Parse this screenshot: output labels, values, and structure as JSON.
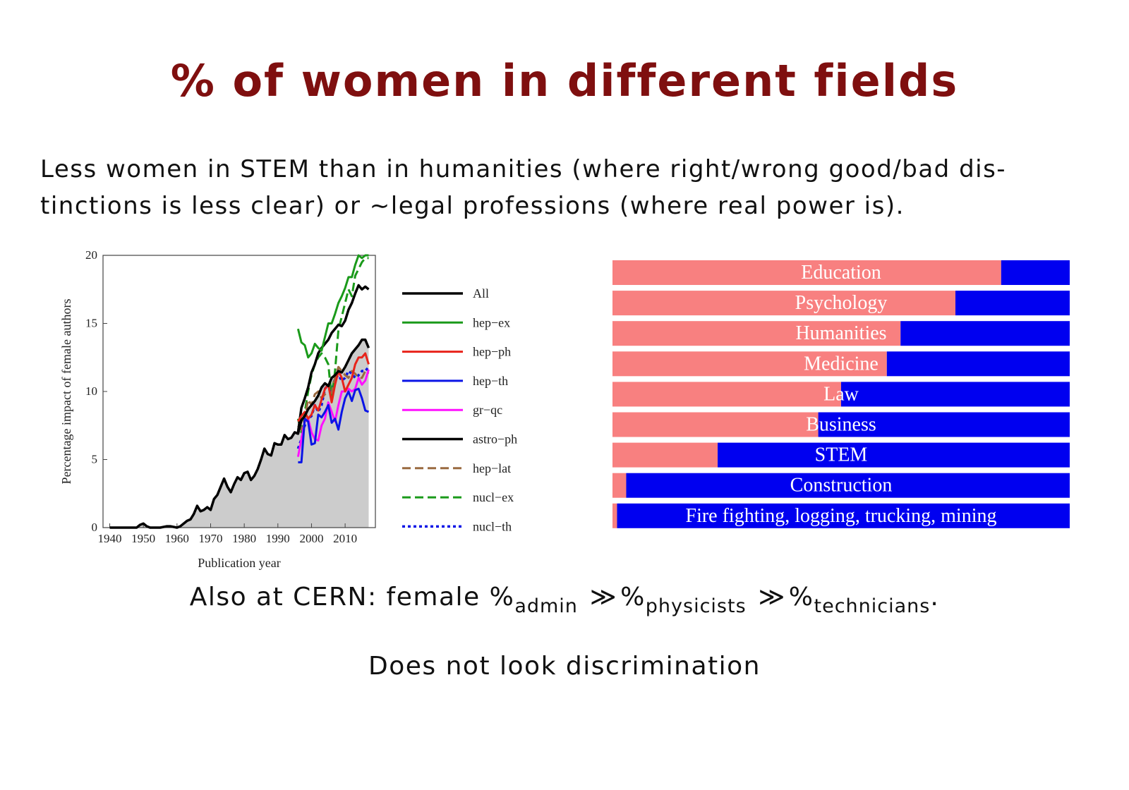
{
  "slide": {
    "title": "% of women in different fields",
    "intro_line1": "Less women in STEM than in humanities (where right/wrong good/bad dis-",
    "intro_line2": "tinctions is less clear) or ∼legal professions (where real power is).",
    "cern_prefix": "Also at CERN: female %",
    "cern_sub1": "admin",
    "cern_sep": "≫",
    "cern_pct": "%",
    "cern_sub2": "physicists",
    "cern_sub3": "technicians",
    "cern_suffix": ".",
    "conclusion": "Does not look discrimination"
  },
  "chart_data": [
    {
      "type": "line",
      "xlabel": "Publication year",
      "ylabel": "Percentage impact of female authors",
      "xlim": [
        1938,
        2019
      ],
      "ylim": [
        0,
        20
      ],
      "xticks": [
        1940,
        1950,
        1960,
        1970,
        1980,
        1990,
        2000,
        2010
      ],
      "yticks": [
        0,
        5,
        10,
        15,
        20
      ],
      "grid": false,
      "legend": "right",
      "series": [
        {
          "name": "All",
          "color": "#000000",
          "dash": "solid",
          "width": 3.5,
          "fill": true,
          "x": [
            1940,
            1945,
            1948,
            1949,
            1950,
            1951,
            1952,
            1955,
            1957,
            1958,
            1960,
            1961,
            1962,
            1963,
            1964,
            1965,
            1966,
            1967,
            1968,
            1969,
            1970,
            1971,
            1972,
            1973,
            1974,
            1975,
            1976,
            1977,
            1978,
            1979,
            1980,
            1981,
            1982,
            1983,
            1984,
            1985,
            1986,
            1987,
            1988,
            1989,
            1990,
            1991,
            1992,
            1993,
            1994,
            1995,
            1996,
            1997,
            1998,
            1999,
            2000,
            2001,
            2002,
            2003,
            2004,
            2005,
            2006,
            2007,
            2008,
            2009,
            2010,
            2011,
            2012,
            2013,
            2014,
            2015,
            2016,
            2017
          ],
          "y": [
            0,
            0,
            0,
            0.2,
            0.3,
            0.1,
            0,
            0,
            0.1,
            0.1,
            0,
            0.1,
            0.3,
            0.5,
            0.6,
            1.0,
            1.6,
            1.2,
            1.3,
            1.5,
            1.3,
            2.1,
            2.4,
            3.0,
            3.6,
            3.0,
            2.6,
            3.2,
            3.7,
            3.5,
            4.0,
            4.1,
            3.5,
            3.8,
            4.3,
            5.0,
            5.8,
            5.4,
            5.3,
            6.2,
            6.1,
            6.1,
            6.8,
            6.5,
            6.6,
            7.0,
            6.9,
            7.9,
            8.2,
            8.7,
            9.0,
            9.3,
            9.7,
            10.3,
            10.6,
            10.4,
            11.0,
            11.2,
            11.5,
            11.4,
            11.8,
            12.3,
            12.8,
            13.1,
            13.4,
            13.8,
            13.8,
            13.2
          ]
        },
        {
          "name": "hep−ex",
          "color": "#1a9a1a",
          "dash": "solid",
          "width": 3,
          "x": [
            1996,
            1997,
            1998,
            1999,
            2000,
            2001,
            2002,
            2003,
            2004,
            2005,
            2006,
            2007,
            2008,
            2009,
            2010,
            2011,
            2012,
            2013,
            2014,
            2015,
            2016,
            2017
          ],
          "y": [
            14.6,
            13.6,
            13.4,
            12.5,
            12.8,
            13.5,
            13.2,
            13.0,
            14.0,
            15.0,
            15.0,
            15.7,
            16.5,
            17.0,
            17.6,
            18.4,
            18.4,
            19.3,
            20.0,
            19.8,
            20.0,
            20.0
          ]
        },
        {
          "name": "hep−ph",
          "color": "#e8231a",
          "dash": "solid",
          "width": 3,
          "x": [
            1996,
            1997,
            1998,
            1999,
            2000,
            2001,
            2002,
            2003,
            2004,
            2005,
            2006,
            2007,
            2008,
            2009,
            2010,
            2011,
            2012,
            2013,
            2014,
            2015,
            2016,
            2017
          ],
          "y": [
            7.8,
            8.2,
            8.5,
            8.0,
            8.3,
            9.0,
            8.6,
            9.4,
            10.2,
            10.5,
            9.2,
            10.5,
            11.5,
            11.0,
            10.0,
            10.5,
            11.0,
            12.0,
            12.5,
            12.5,
            12.8,
            12.0
          ]
        },
        {
          "name": "hep−th",
          "color": "#0a14e6",
          "dash": "solid",
          "width": 3,
          "x": [
            1996,
            1997,
            1998,
            1999,
            2000,
            2001,
            2002,
            2003,
            2004,
            2005,
            2006,
            2007,
            2008,
            2009,
            2010,
            2011,
            2012,
            2013,
            2014,
            2015,
            2016,
            2017
          ],
          "y": [
            4.8,
            4.8,
            8.0,
            7.8,
            6.1,
            6.2,
            8.3,
            8.1,
            8.5,
            9.0,
            7.7,
            8.0,
            7.2,
            8.5,
            9.5,
            10.0,
            9.3,
            10.1,
            10.2,
            9.5,
            8.6,
            8.5
          ]
        },
        {
          "name": "gr−qc",
          "color": "#ff10ff",
          "dash": "solid",
          "width": 3,
          "x": [
            1996,
            1997,
            1998,
            1999,
            2000,
            2001,
            2002,
            2003,
            2004,
            2005,
            2006,
            2007,
            2008,
            2009,
            2010,
            2011,
            2012,
            2013,
            2014,
            2015,
            2016,
            2017
          ],
          "y": [
            5.2,
            6.5,
            7.8,
            8.0,
            7.0,
            6.5,
            6.4,
            7.5,
            8.0,
            9.2,
            8.5,
            7.8,
            9.0,
            10.0,
            10.0,
            10.2,
            10.0,
            10.2,
            11.0,
            10.5,
            10.8,
            11.6
          ]
        },
        {
          "name": "astro−ph",
          "color": "#000000",
          "dash": "solid",
          "width": 3.5,
          "x": [
            1996,
            1997,
            1998,
            1999,
            2000,
            2001,
            2002,
            2003,
            2004,
            2005,
            2006,
            2007,
            2008,
            2009,
            2010,
            2011,
            2012,
            2013,
            2014,
            2015,
            2016,
            2017
          ],
          "y": [
            7.0,
            8.8,
            9.5,
            10.3,
            11.4,
            12.0,
            12.8,
            13.2,
            13.5,
            13.8,
            14.3,
            14.6,
            14.9,
            14.8,
            15.2,
            16.0,
            16.5,
            17.2,
            17.8,
            17.5,
            17.7,
            17.5
          ]
        },
        {
          "name": "hep−lat",
          "color": "#9a6a40",
          "dash": "dashed",
          "width": 3,
          "x": [
            1996,
            1997,
            1998,
            1999,
            2000,
            2001,
            2002,
            2003,
            2004,
            2005,
            2006,
            2007,
            2008,
            2009,
            2010,
            2011,
            2012,
            2013,
            2014,
            2015,
            2016,
            2017
          ],
          "y": [
            7.5,
            7.2,
            8.0,
            9.4,
            9.0,
            9.8,
            10.0,
            9.5,
            9.8,
            10.0,
            9.9,
            11.0,
            11.8,
            11.5,
            11.2,
            11.0,
            11.5,
            11.3,
            11.0,
            11.0,
            11.5,
            11.3
          ]
        },
        {
          "name": "nucl−ex",
          "color": "#1a9a1a",
          "dash": "dashed",
          "width": 3,
          "x": [
            1996,
            1997,
            1998,
            1999,
            2000,
            2001,
            2002,
            2003,
            2004,
            2005,
            2006,
            2007,
            2008,
            2009,
            2010,
            2011,
            2012,
            2013,
            2014,
            2015,
            2016,
            2017
          ],
          "y": [
            8.0,
            7.0,
            8.5,
            10.0,
            11.2,
            12.0,
            12.5,
            12.8,
            12.5,
            12.0,
            9.5,
            11.5,
            14.5,
            15.5,
            16.5,
            17.5,
            17.0,
            18.5,
            19.0,
            19.5,
            19.8,
            19.8
          ]
        },
        {
          "name": "nucl−th",
          "color": "#0a14e6",
          "dash": "dotted",
          "width": 3.5,
          "x": [
            1996,
            1997,
            1998,
            1999,
            2000,
            2001,
            2002,
            2003,
            2004,
            2005,
            2006,
            2007,
            2008,
            2009,
            2010,
            2011,
            2012,
            2013,
            2014,
            2015,
            2016,
            2017
          ],
          "y": [
            5.8,
            6.5,
            7.5,
            8.0,
            8.2,
            9.0,
            8.5,
            9.0,
            10.2,
            10.5,
            10.0,
            11.0,
            11.2,
            10.8,
            11.0,
            11.5,
            11.3,
            11.0,
            11.2,
            11.5,
            11.5,
            11.8
          ]
        }
      ]
    },
    {
      "type": "bar",
      "orientation": "horizontal",
      "stacked": true,
      "categories": [
        "Education",
        "Psychology",
        "Humanities",
        "Medicine",
        "Law",
        "Business",
        "STEM",
        "Construction",
        "Fire fighting, logging, trucking, mining"
      ],
      "series": [
        {
          "color": "#f88080",
          "values": [
            85,
            75,
            63,
            60,
            50,
            45,
            23,
            3,
            1
          ]
        },
        {
          "color": "#0000f0",
          "values": [
            15,
            25,
            37,
            40,
            50,
            55,
            77,
            97,
            99
          ]
        }
      ],
      "xlim": [
        0,
        100
      ]
    }
  ]
}
